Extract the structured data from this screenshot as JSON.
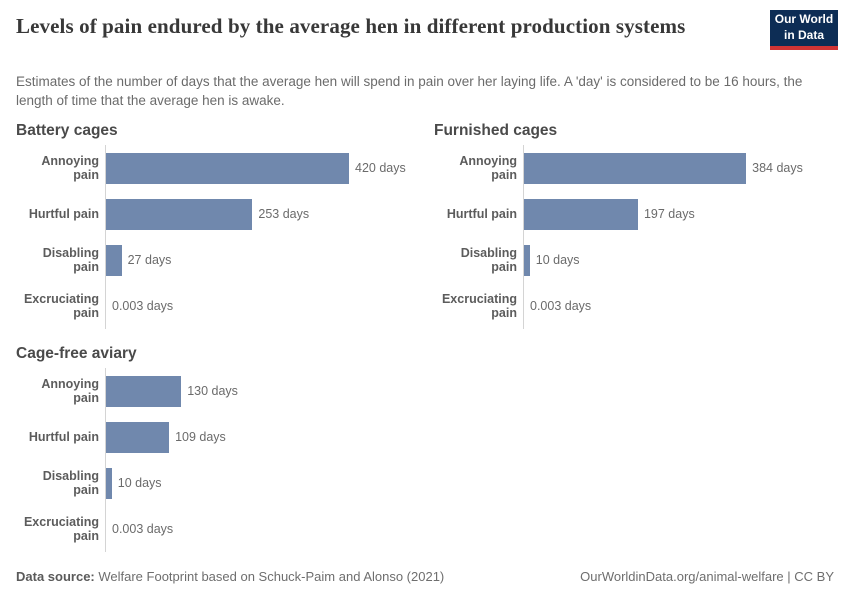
{
  "header": {
    "title": "Levels of pain endured by the average hen in different production systems",
    "subtitle": "Estimates of the number of days that the average hen will spend in pain over her laying life. A 'day' is considered to be 16 hours, the length of time that the average hen is awake.",
    "logo": {
      "line1": "Our World",
      "line2": "in Data"
    }
  },
  "chart_data": {
    "type": "bar",
    "orientation": "horizontal",
    "grid": false,
    "legend": false,
    "unit": "days",
    "xlim": [
      0,
      420
    ],
    "bar_color": "#7088ad",
    "axis_color": "#d4d4d4",
    "categories": [
      "Annoying pain",
      "Hurtful pain",
      "Disabling pain",
      "Excruciating pain"
    ],
    "facets": [
      {
        "title": "Battery cages",
        "values": [
          420,
          253,
          27,
          0.003
        ],
        "value_labels": [
          "420 days",
          "253 days",
          "27 days",
          "0.003 days"
        ]
      },
      {
        "title": "Furnished cages",
        "values": [
          384,
          197,
          10,
          0.003
        ],
        "value_labels": [
          "384 days",
          "197 days",
          "10 days",
          "0.003 days"
        ]
      },
      {
        "title": "Cage-free aviary",
        "values": [
          130,
          109,
          10,
          0.003
        ],
        "value_labels": [
          "130 days",
          "109 days",
          "10 days",
          "0.003 days"
        ]
      }
    ]
  },
  "footer": {
    "source_label": "Data source:",
    "source_text": " Welfare Footprint based on Schuck-Paim and Alonso (2021)",
    "right_text": "OurWorldinData.org/animal-welfare | CC BY"
  }
}
